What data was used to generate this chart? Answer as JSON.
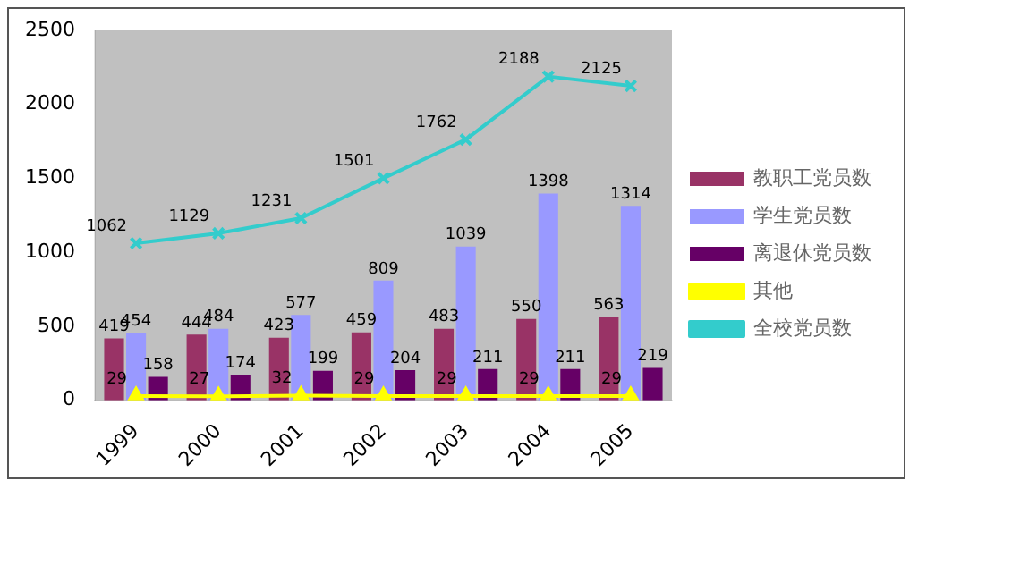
{
  "chart_data": {
    "type": "bar",
    "categories": [
      "1999",
      "2000",
      "2001",
      "2002",
      "2003",
      "2004",
      "2005"
    ],
    "series": [
      {
        "name": "教职工党员数",
        "color": "#993366",
        "values": [
          419,
          444,
          423,
          459,
          483,
          550,
          563
        ]
      },
      {
        "name": "学生党员数",
        "color": "#9999ff",
        "values": [
          454,
          484,
          577,
          809,
          1039,
          1398,
          1314
        ]
      },
      {
        "name": "离退休党员数",
        "color": "#660066",
        "values": [
          158,
          174,
          199,
          204,
          211,
          211,
          219
        ]
      },
      {
        "name": "其他",
        "type": "line",
        "color": "#ffff00",
        "marker": "triangle",
        "values": [
          29,
          27,
          32,
          29,
          29,
          29,
          29
        ]
      },
      {
        "name": "全校党员数",
        "type": "line",
        "color": "#33cccc",
        "marker": "cross",
        "values": [
          1062,
          1129,
          1231,
          1501,
          1762,
          2188,
          2125
        ]
      }
    ],
    "ylim": [
      0,
      2500
    ],
    "yticks": [
      0,
      500,
      1000,
      1500,
      2000,
      2500
    ],
    "grid": false,
    "legend": "right",
    "data_labels": true
  }
}
